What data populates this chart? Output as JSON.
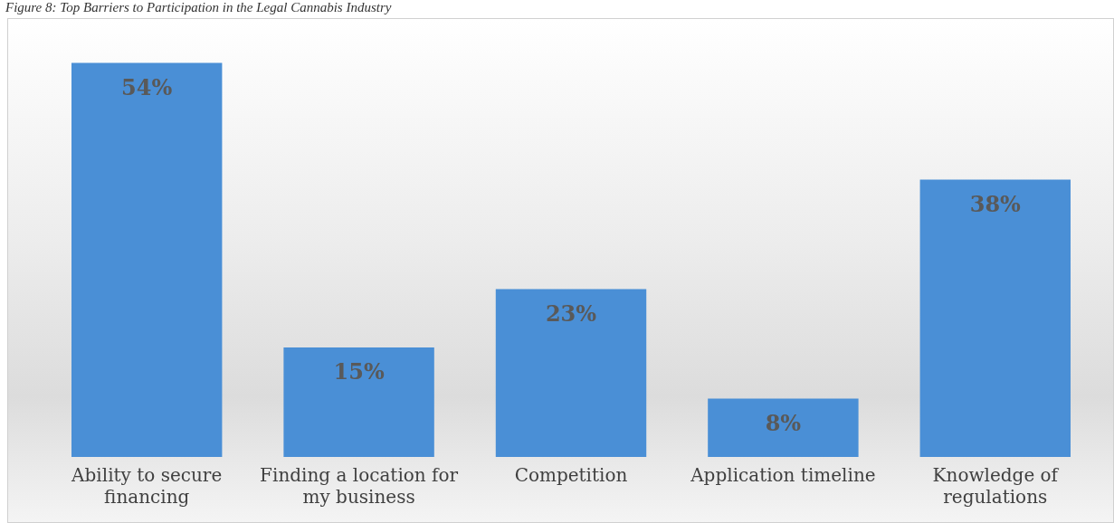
{
  "chart_data": {
    "type": "bar",
    "title": "Figure 8: Top Barriers to Participation in the Legal Cannabis Industry",
    "categories": [
      "Ability to secure financing",
      "Finding a location for my business",
      "Competition",
      "Application timeline",
      "Knowledge of regulations"
    ],
    "values": [
      54,
      15,
      23,
      8,
      38
    ],
    "color": "#4a8fd6",
    "relative": false,
    "value_labels": [
      "54%",
      "15%",
      "23%",
      "8%",
      "38%"
    ],
    "grid": false,
    "legend": false
  }
}
